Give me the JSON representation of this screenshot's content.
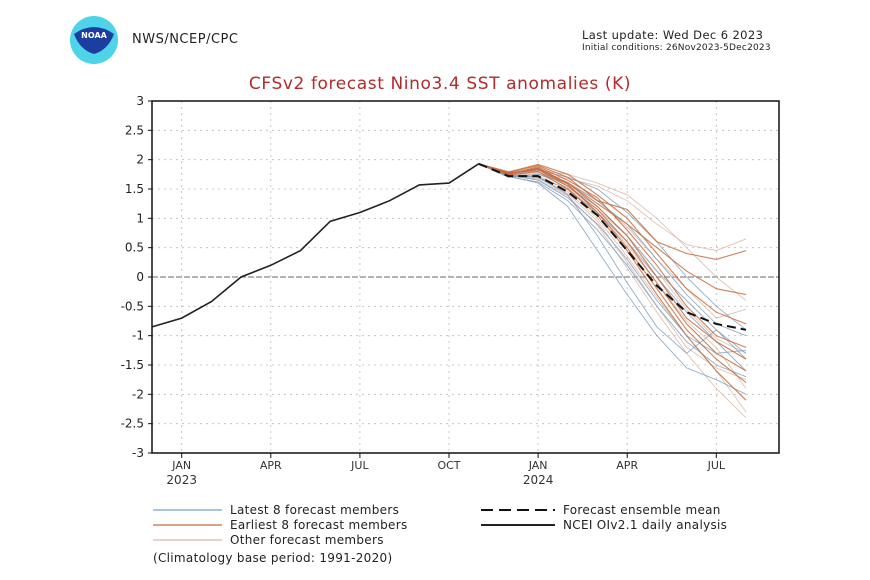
{
  "header": {
    "logo_name": "NOAA",
    "org": "NWS/NCEP/CPC",
    "last_update": "Last update: Wed Dec  6 2023",
    "initial_conditions": "Initial conditions: 26Nov2023-5Dec2023"
  },
  "colors": {
    "title": "#b22a2a",
    "observed": "#222222",
    "mean": "#111111",
    "latest": "#7f9fc0",
    "earliest": "#c86a3a",
    "other": "#d9b9a8",
    "grid": "#bbbbbb",
    "zero": "#888888"
  },
  "chart_data": {
    "type": "line",
    "title": "CFSv2 forecast Nino3.4 SST anomalies (K)",
    "xlabel": "",
    "ylabel": "",
    "ylim": [
      -3,
      3
    ],
    "yticks": [
      3,
      2.5,
      2,
      1.5,
      1,
      0.5,
      0,
      -0.5,
      -1,
      -1.5,
      -2,
      -2.5,
      -3
    ],
    "ytick_labels": [
      "3",
      "2.5",
      "2",
      "1.5",
      "1",
      "0.5",
      "0",
      "-0.5",
      "-1",
      "-1.5",
      "-2",
      "-2.5",
      "-3"
    ],
    "xlim_months": [
      "2022-12",
      "2024-08"
    ],
    "xticks": [
      {
        "month": "2023-01",
        "label": "JAN",
        "year": "2023"
      },
      {
        "month": "2023-04",
        "label": "APR",
        "year": ""
      },
      {
        "month": "2023-07",
        "label": "JUL",
        "year": ""
      },
      {
        "month": "2023-10",
        "label": "OCT",
        "year": ""
      },
      {
        "month": "2024-01",
        "label": "JAN",
        "year": "2024"
      },
      {
        "month": "2024-04",
        "label": "APR",
        "year": ""
      },
      {
        "month": "2024-07",
        "label": "JUL",
        "year": ""
      }
    ],
    "grid": true,
    "observed": {
      "name": "NCEI OIv2.1 daily analysis",
      "x_month_index": [
        0,
        1,
        2,
        3,
        3.5,
        4,
        5,
        6,
        7,
        8,
        9,
        10,
        11
      ],
      "values": [
        -0.85,
        -0.7,
        -0.42,
        0.0,
        0.1,
        0.2,
        0.45,
        0.95,
        1.1,
        1.3,
        1.57,
        1.6,
        1.93
      ]
    },
    "forecast_x_month_index": [
      11,
      12,
      13,
      14,
      15,
      16,
      17,
      18,
      19,
      20
    ],
    "ensemble_mean": {
      "name": "Forecast ensemble mean",
      "values": [
        1.93,
        1.72,
        1.72,
        1.45,
        1.05,
        0.45,
        -0.15,
        -0.6,
        -0.8,
        -0.9
      ]
    },
    "series": [
      {
        "name": "Latest 8 forecast members",
        "group": "latest",
        "values": [
          1.93,
          1.75,
          1.7,
          1.4,
          0.7,
          -0.1,
          -0.85,
          -1.3,
          -0.9,
          -1.3
        ]
      },
      {
        "name": "Latest 8 forecast members",
        "group": "latest",
        "values": [
          1.93,
          1.72,
          1.6,
          1.2,
          0.45,
          -0.3,
          -1.0,
          -1.55,
          -1.75,
          -2.0
        ]
      },
      {
        "name": "Latest 8 forecast members",
        "group": "latest",
        "values": [
          1.93,
          1.78,
          1.8,
          1.55,
          1.2,
          0.7,
          0.1,
          -0.4,
          -0.9,
          -1.4
        ]
      },
      {
        "name": "Latest 8 forecast members",
        "group": "latest",
        "values": [
          1.93,
          1.7,
          1.75,
          1.6,
          1.3,
          0.9,
          0.3,
          -0.3,
          -0.8,
          -1.0
        ]
      },
      {
        "name": "Latest 8 forecast members",
        "group": "latest",
        "values": [
          1.93,
          1.74,
          1.65,
          1.35,
          0.9,
          0.3,
          -0.4,
          -1.0,
          -1.3,
          -1.25
        ]
      },
      {
        "name": "Latest 8 forecast members",
        "group": "latest",
        "values": [
          1.93,
          1.76,
          1.82,
          1.7,
          1.5,
          1.1,
          0.6,
          0.0,
          -0.5,
          -0.9
        ]
      },
      {
        "name": "Latest 8 forecast members",
        "group": "latest",
        "values": [
          1.93,
          1.73,
          1.7,
          1.5,
          1.1,
          0.6,
          0.0,
          -0.6,
          -1.1,
          -1.6
        ]
      },
      {
        "name": "Latest 8 forecast members",
        "group": "latest",
        "values": [
          1.93,
          1.71,
          1.62,
          1.3,
          0.8,
          0.2,
          -0.5,
          -1.1,
          -1.5,
          -1.7
        ]
      },
      {
        "name": "Earliest 8 forecast members",
        "group": "earliest",
        "values": [
          1.93,
          1.78,
          1.9,
          1.7,
          1.3,
          1.15,
          0.6,
          0.4,
          0.3,
          0.45
        ]
      },
      {
        "name": "Earliest 8 forecast members",
        "group": "earliest",
        "values": [
          1.93,
          1.76,
          1.85,
          1.6,
          1.25,
          0.9,
          0.5,
          0.1,
          -0.2,
          -0.3
        ]
      },
      {
        "name": "Earliest 8 forecast members",
        "group": "earliest",
        "values": [
          1.93,
          1.75,
          1.88,
          1.65,
          1.35,
          0.8,
          0.2,
          -0.5,
          -1.0,
          -1.2
        ]
      },
      {
        "name": "Earliest 8 forecast members",
        "group": "earliest",
        "values": [
          1.93,
          1.77,
          1.83,
          1.55,
          1.15,
          0.6,
          -0.1,
          -0.8,
          -1.3,
          -1.6
        ]
      },
      {
        "name": "Earliest 8 forecast members",
        "group": "earliest",
        "values": [
          1.93,
          1.74,
          1.8,
          1.5,
          1.05,
          0.45,
          -0.3,
          -1.0,
          -1.6,
          -2.1
        ]
      },
      {
        "name": "Earliest 8 forecast members",
        "group": "earliest",
        "values": [
          1.93,
          1.79,
          1.92,
          1.75,
          1.4,
          1.0,
          0.4,
          -0.2,
          -0.6,
          -0.8
        ]
      },
      {
        "name": "Earliest 8 forecast members",
        "group": "earliest",
        "values": [
          1.93,
          1.75,
          1.86,
          1.6,
          1.2,
          0.7,
          0.0,
          -0.7,
          -1.1,
          -1.4
        ]
      },
      {
        "name": "Earliest 8 forecast members",
        "group": "earliest",
        "values": [
          1.93,
          1.76,
          1.84,
          1.58,
          1.1,
          0.5,
          -0.2,
          -0.9,
          -1.4,
          -1.8
        ]
      },
      {
        "name": "Other forecast members",
        "group": "other",
        "values": [
          1.93,
          1.8,
          1.82,
          1.75,
          1.6,
          1.4,
          1.0,
          0.5,
          0.0,
          -0.4
        ]
      },
      {
        "name": "Other forecast members",
        "group": "other",
        "values": [
          1.93,
          1.78,
          1.75,
          1.68,
          1.55,
          1.3,
          0.9,
          0.55,
          0.45,
          0.65
        ]
      },
      {
        "name": "Other forecast members",
        "group": "other",
        "values": [
          1.93,
          1.72,
          1.68,
          1.45,
          1.0,
          0.35,
          -0.35,
          -1.0,
          -1.6,
          -2.3
        ]
      },
      {
        "name": "Other forecast members",
        "group": "other",
        "values": [
          1.93,
          1.74,
          1.76,
          1.52,
          1.15,
          0.7,
          0.1,
          -0.55,
          -1.05,
          -1.3
        ]
      },
      {
        "name": "Other forecast members",
        "group": "other",
        "values": [
          1.93,
          1.76,
          1.7,
          1.42,
          0.95,
          0.25,
          -0.5,
          -1.2,
          -1.55,
          -1.75
        ]
      },
      {
        "name": "Other forecast members",
        "group": "other",
        "values": [
          1.93,
          1.77,
          1.78,
          1.62,
          1.3,
          0.85,
          0.3,
          -0.2,
          -0.7,
          -0.55
        ]
      },
      {
        "name": "Other forecast members",
        "group": "other",
        "values": [
          1.93,
          1.75,
          1.73,
          1.48,
          1.08,
          0.55,
          -0.1,
          -0.75,
          -1.2,
          -1.9
        ]
      },
      {
        "name": "Other forecast members",
        "group": "other",
        "values": [
          1.93,
          1.73,
          1.66,
          1.38,
          0.88,
          0.15,
          -0.6,
          -1.3,
          -1.9,
          -2.4
        ]
      }
    ],
    "legend": [
      {
        "label": "Latest 8 forecast members",
        "style": "latest",
        "placement": "bottom-left"
      },
      {
        "label": "Earliest 8 forecast members",
        "style": "earliest",
        "placement": "bottom-left"
      },
      {
        "label": "Other forecast members",
        "style": "other",
        "placement": "bottom-left"
      },
      {
        "label": "Forecast ensemble mean",
        "style": "mean",
        "placement": "bottom-right"
      },
      {
        "label": "NCEI OIv2.1 daily analysis",
        "style": "observed",
        "placement": "bottom-right"
      }
    ],
    "footnote": "(Climatology base period: 1991-2020)"
  }
}
